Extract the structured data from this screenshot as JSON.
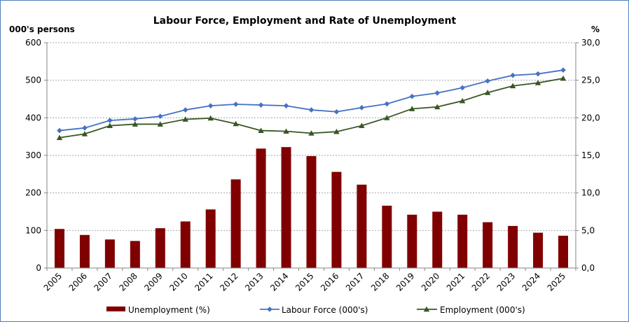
{
  "chart_data": {
    "type": "bar",
    "title": "Labour Force, Employment and Rate of Unemployment",
    "ylabel_left": "000's persons",
    "ylabel_right": "%",
    "ylim_left": [
      0,
      600
    ],
    "ylim_right": [
      0,
      30
    ],
    "yticks_left": [
      "0",
      "100",
      "200",
      "300",
      "400",
      "500",
      "600"
    ],
    "yticks_right": [
      "0,0",
      "5,0",
      "10,0",
      "15,0",
      "20,0",
      "25,0",
      "30,0"
    ],
    "categories": [
      "2005",
      "2006",
      "2007",
      "2008",
      "2009",
      "2010",
      "2011",
      "2012",
      "2013",
      "2014",
      "2015",
      "2016",
      "2017",
      "2018",
      "2019",
      "2020",
      "2021",
      "2022",
      "2023",
      "2024",
      "2025"
    ],
    "grid": true,
    "legend_position": "bottom",
    "series": [
      {
        "name": "Unemployment (%)",
        "type": "bar",
        "axis": "right",
        "color": "#800000",
        "values": [
          5.2,
          4.4,
          3.8,
          3.6,
          5.3,
          6.2,
          7.8,
          11.8,
          15.9,
          16.1,
          14.9,
          12.8,
          11.1,
          8.3,
          7.1,
          7.5,
          7.1,
          6.1,
          5.6,
          4.7,
          4.3
        ]
      },
      {
        "name": "Labour Force (000's)",
        "type": "line",
        "axis": "left",
        "marker": "diamond",
        "color": "#4472c4",
        "values": [
          366,
          373,
          393,
          397,
          404,
          421,
          432,
          436,
          434,
          432,
          421,
          416,
          427,
          437,
          457,
          466,
          480,
          498,
          513,
          517,
          527
        ]
      },
      {
        "name": "Employment (000's)",
        "type": "line",
        "axis": "left",
        "marker": "triangle",
        "color": "#375623",
        "values": [
          347,
          357,
          379,
          383,
          383,
          396,
          399,
          384,
          366,
          364,
          359,
          363,
          379,
          400,
          424,
          429,
          445,
          467,
          485,
          493,
          505
        ]
      }
    ]
  }
}
